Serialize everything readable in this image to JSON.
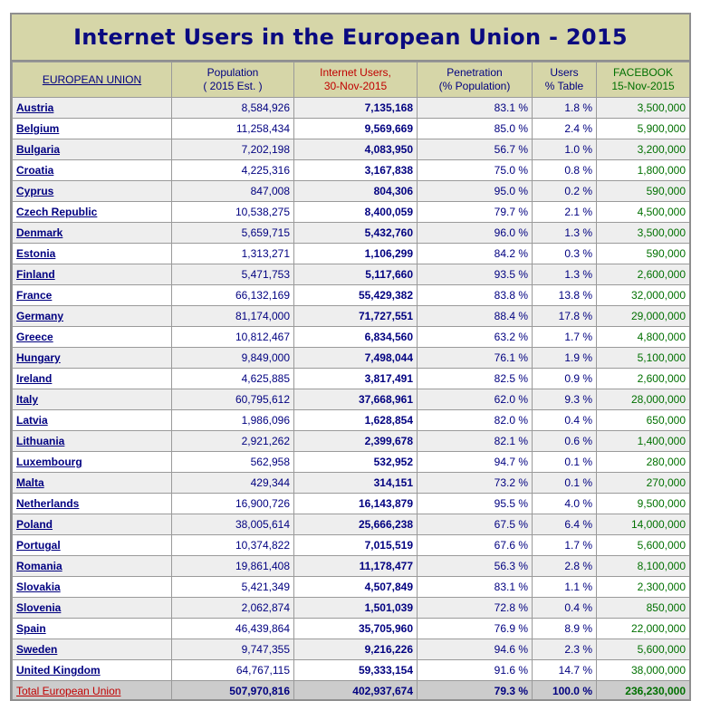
{
  "title": "Internet Users in the European Union - 2015",
  "headers": {
    "country": "EUROPEAN UNION",
    "population": [
      "Population",
      "( 2015 Est. )"
    ],
    "internet_users": [
      "Internet Users,",
      "30-Nov-2015"
    ],
    "penetration": [
      "Penetration",
      "(% Population)"
    ],
    "users_table": [
      "Users",
      "% Table"
    ],
    "facebook": [
      "FACEBOOK",
      "15-Nov-2015"
    ]
  },
  "rows": [
    {
      "country": "Austria",
      "population": "8,584,926",
      "users": "7,135,168",
      "penetration": "83.1 %",
      "table": "1.8 %",
      "facebook": "3,500,000"
    },
    {
      "country": "Belgium",
      "population": "11,258,434",
      "users": "9,569,669",
      "penetration": "85.0 %",
      "table": "2.4 %",
      "facebook": "5,900,000"
    },
    {
      "country": "Bulgaria",
      "population": "7,202,198",
      "users": "4,083,950",
      "penetration": "56.7 %",
      "table": "1.0 %",
      "facebook": "3,200,000"
    },
    {
      "country": "Croatia",
      "population": "4,225,316",
      "users": "3,167,838",
      "penetration": "75.0 %",
      "table": "0.8 %",
      "facebook": "1,800,000"
    },
    {
      "country": "Cyprus",
      "population": "847,008",
      "users": "804,306",
      "penetration": "95.0 %",
      "table": "0.2 %",
      "facebook": "590,000"
    },
    {
      "country": "Czech Republic",
      "population": "10,538,275",
      "users": "8,400,059",
      "penetration": "79.7 %",
      "table": "2.1 %",
      "facebook": "4,500,000"
    },
    {
      "country": "Denmark",
      "population": "5,659,715",
      "users": "5,432,760",
      "penetration": "96.0 %",
      "table": "1.3 %",
      "facebook": "3,500,000"
    },
    {
      "country": "Estonia",
      "population": "1,313,271",
      "users": "1,106,299",
      "penetration": "84.2 %",
      "table": "0.3 %",
      "facebook": "590,000"
    },
    {
      "country": "Finland",
      "population": "5,471,753",
      "users": "5,117,660",
      "penetration": "93.5 %",
      "table": "1.3 %",
      "facebook": "2,600,000"
    },
    {
      "country": "France",
      "population": "66,132,169",
      "users": "55,429,382",
      "penetration": "83.8 %",
      "table": "13.8 %",
      "facebook": "32,000,000"
    },
    {
      "country": "Germany",
      "population": "81,174,000",
      "users": "71,727,551",
      "penetration": "88.4 %",
      "table": "17.8 %",
      "facebook": "29,000,000"
    },
    {
      "country": "Greece",
      "population": "10,812,467",
      "users": "6,834,560",
      "penetration": "63.2 %",
      "table": "1.7 %",
      "facebook": "4,800,000"
    },
    {
      "country": "Hungary",
      "population": "9,849,000",
      "users": "7,498,044",
      "penetration": "76.1 %",
      "table": "1.9 %",
      "facebook": "5,100,000"
    },
    {
      "country": "Ireland",
      "population": "4,625,885",
      "users": "3,817,491",
      "penetration": "82.5 %",
      "table": "0.9 %",
      "facebook": "2,600,000"
    },
    {
      "country": "Italy",
      "population": "60,795,612",
      "users": "37,668,961",
      "penetration": "62.0 %",
      "table": "9.3 %",
      "facebook": "28,000,000"
    },
    {
      "country": "Latvia",
      "population": "1,986,096",
      "users": "1,628,854",
      "penetration": "82.0 %",
      "table": "0.4 %",
      "facebook": "650,000"
    },
    {
      "country": "Lithuania",
      "population": "2,921,262",
      "users": "2,399,678",
      "penetration": "82.1 %",
      "table": "0.6 %",
      "facebook": "1,400,000"
    },
    {
      "country": "Luxembourg",
      "population": "562,958",
      "users": "532,952",
      "penetration": "94.7 %",
      "table": "0.1 %",
      "facebook": "280,000"
    },
    {
      "country": "Malta",
      "population": "429,344",
      "users": "314,151",
      "penetration": "73.2 %",
      "table": "0.1 %",
      "facebook": "270,000"
    },
    {
      "country": "Netherlands",
      "population": "16,900,726",
      "users": "16,143,879",
      "penetration": "95.5 %",
      "table": "4.0 %",
      "facebook": "9,500,000"
    },
    {
      "country": "Poland",
      "population": "38,005,614",
      "users": "25,666,238",
      "penetration": "67.5 %",
      "table": "6.4 %",
      "facebook": "14,000,000"
    },
    {
      "country": "Portugal",
      "population": "10,374,822",
      "users": "7,015,519",
      "penetration": "67.6 %",
      "table": "1.7 %",
      "facebook": "5,600,000"
    },
    {
      "country": "Romania",
      "population": "19,861,408",
      "users": "11,178,477",
      "penetration": "56.3 %",
      "table": "2.8 %",
      "facebook": "8,100,000"
    },
    {
      "country": "Slovakia",
      "population": "5,421,349",
      "users": "4,507,849",
      "penetration": "83.1 %",
      "table": "1.1 %",
      "facebook": "2,300,000"
    },
    {
      "country": "Slovenia",
      "population": "2,062,874",
      "users": "1,501,039",
      "penetration": "72.8 %",
      "table": "0.4 %",
      "facebook": "850,000"
    },
    {
      "country": "Spain",
      "population": "46,439,864",
      "users": "35,705,960",
      "penetration": "76.9 %",
      "table": "8.9 %",
      "facebook": "22,000,000"
    },
    {
      "country": "Sweden",
      "population": "9,747,355",
      "users": "9,216,226",
      "penetration": "94.6 %",
      "table": "2.3 %",
      "facebook": "5,600,000"
    },
    {
      "country": "United Kingdom",
      "population": "64,767,115",
      "users": "59,333,154",
      "penetration": "91.6 %",
      "table": "14.7 %",
      "facebook": "38,000,000"
    }
  ],
  "total": {
    "country": "Total European Union",
    "population": "507,970,816",
    "users": "402,937,674",
    "penetration": "79.3 %",
    "table": "100.0 %",
    "facebook": "236,230,000"
  },
  "colors": {
    "header_bg": "#d6d6a8",
    "title": "#0a0a80",
    "link": "#000080",
    "red": "#c00000",
    "green": "#007000",
    "alt_row": "#eeeeee",
    "total_row": "#cccccc"
  }
}
